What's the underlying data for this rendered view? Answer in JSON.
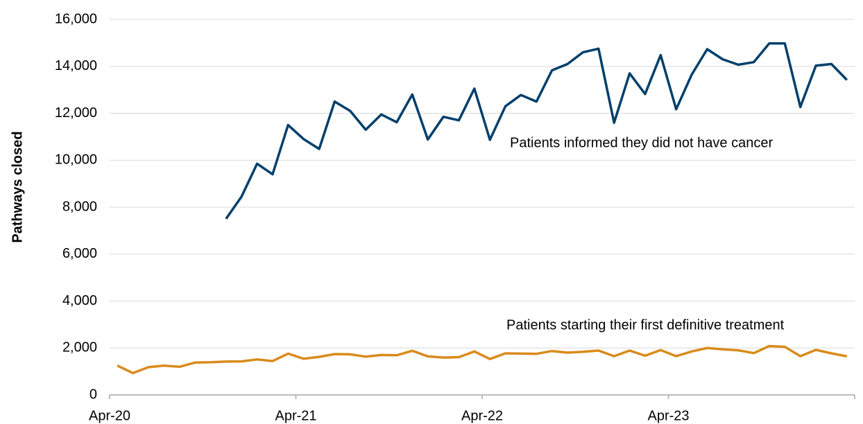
{
  "chart_data": {
    "type": "line",
    "y_label": "Pathways closed",
    "categories": [
      "Apr-20",
      null,
      null,
      null,
      null,
      null,
      null,
      null,
      null,
      null,
      null,
      null,
      "Apr-21",
      null,
      null,
      null,
      null,
      null,
      null,
      null,
      null,
      null,
      null,
      null,
      "Apr-22",
      null,
      null,
      null,
      null,
      null,
      null,
      null,
      null,
      null,
      null,
      null,
      "Apr-23",
      null,
      null,
      null,
      null,
      null,
      null,
      null,
      null,
      null,
      null,
      null
    ],
    "series": [
      {
        "color": "#003f6b",
        "values": [
          null,
          null,
          null,
          null,
          null,
          null,
          null,
          7500,
          8450,
          9850,
          9400,
          11500,
          10900,
          10480,
          12500,
          12100,
          11300,
          11950,
          11620,
          12800,
          10880,
          11850,
          11700,
          13050,
          10870,
          12300,
          12780,
          12500,
          13830,
          14100,
          14600,
          14750,
          11600,
          13700,
          12820,
          14480,
          12170,
          13650,
          14730,
          14300,
          14070,
          14180,
          14980,
          14980,
          12270,
          14030,
          14100,
          13420
        ]
      },
      {
        "color": "#d98b1b",
        "values": [
          1250,
          930,
          1180,
          1250,
          1200,
          1380,
          1390,
          1420,
          1430,
          1510,
          1440,
          1760,
          1540,
          1620,
          1740,
          1730,
          1630,
          1700,
          1690,
          1880,
          1640,
          1590,
          1610,
          1850,
          1530,
          1770,
          1760,
          1750,
          1870,
          1800,
          1840,
          1890,
          1650,
          1890,
          1670,
          1910,
          1650,
          1850,
          2000,
          1940,
          1900,
          1780,
          2080,
          2050,
          1650,
          1920,
          1770,
          1640
        ]
      }
    ],
    "annotations": [
      "Patients informed they did not have cancer",
      "Patients starting their first definitive treatment"
    ],
    "ylim": [
      0,
      16000
    ],
    "yticks": [
      0,
      {
        "value": 2000,
        "label": "2,000"
      },
      {
        "value": 4000,
        "label": "4,000"
      },
      {
        "value": 6000,
        "label": "6,000"
      },
      {
        "value": 8000,
        "label": "8,000"
      },
      {
        "value": 10000,
        "label": "10,000"
      },
      {
        "value": 12000,
        "label": "12,000"
      },
      {
        "value": 14000,
        "label": "14,000"
      },
      {
        "value": 16000,
        "label": "16,000"
      }
    ],
    "grid": true
  }
}
